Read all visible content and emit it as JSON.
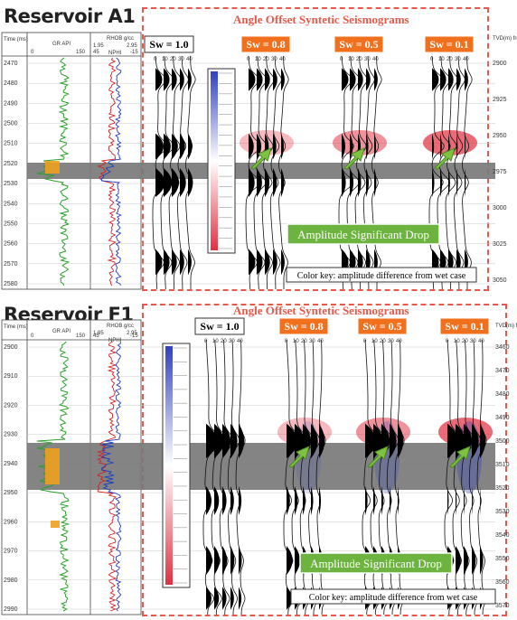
{
  "colors": {
    "dash": "#e8594a",
    "sw_orange": "#f0701e",
    "green_box": "#6db33f",
    "gr_curve": "#2ca02c",
    "rhob_curve": "#d42020",
    "nphi_curve": "#1f3fbf",
    "reservoir_band": "#7a7a7a",
    "amp_red": "#e03040",
    "amp_blue": "#3040c0",
    "pay_fill": "#f0a020"
  },
  "panels": [
    {
      "id": "A1",
      "title": "Reservoir A1",
      "banner": "Angle Offset Syntetic Seismograms",
      "log_headers": {
        "time_label": "Time (ms)",
        "gr_label": "GR API",
        "gr_min": "0",
        "gr_max": "150",
        "rhob_label": "RHOB g/cc",
        "rhob_min": "1.95",
        "rhob_max": "2.95",
        "nphi_label": "NPHI",
        "nphi_min": "45",
        "nphi_max": "-15"
      },
      "time_ticks": [
        "2470",
        "2480",
        "2490",
        "2500",
        "2510",
        "2520",
        "2530",
        "2540",
        "2550",
        "2560",
        "2570",
        "2580"
      ],
      "tvd_label": "TVD(m) from surface",
      "tvd_ticks": [
        "2900",
        "2925",
        "2950",
        "2975",
        "3000",
        "3025",
        "3050"
      ],
      "angles": [
        "0",
        "10",
        "20",
        "30",
        "40"
      ],
      "sw_labels": [
        "Sw = 1.0",
        "Sw = 0.8",
        "Sw = 0.5",
        "Sw = 0.1"
      ],
      "amplitude_label": "Amplitude Significant Drop",
      "color_key": "Color key: amplitude difference from wet case"
    },
    {
      "id": "F1",
      "title": "Reservoir F1",
      "banner": "Angle Offset Syntetic Seismograms",
      "log_headers": {
        "time_label": "Time (ms)",
        "gr_label": "GR API",
        "gr_min": "0",
        "gr_max": "150",
        "rhob_label": "RHOB g/cc",
        "rhob_min": "1.95",
        "rhob_max": "2.95",
        "nphi_label": "NPHI",
        "nphi_min": "45",
        "nphi_max": "-15"
      },
      "time_ticks": [
        "2900",
        "2910",
        "2920",
        "2930",
        "2940",
        "2950",
        "2960",
        "2970",
        "2980",
        "2990"
      ],
      "tvd_label": "TVD(m) from surface",
      "tvd_ticks": [
        "3460",
        "3470",
        "3480",
        "3490",
        "3500",
        "3510",
        "3520",
        "3530",
        "3540",
        "3550",
        "3560",
        "3570"
      ],
      "angles": [
        "0",
        "10",
        "20",
        "30",
        "40"
      ],
      "sw_labels": [
        "Sw = 1.0",
        "Sw = 0.8",
        "Sw = 0.5",
        "Sw = 0.1"
      ],
      "amplitude_label": "Amplitude Significant Drop",
      "color_key": "Color key: amplitude difference from wet case"
    }
  ]
}
